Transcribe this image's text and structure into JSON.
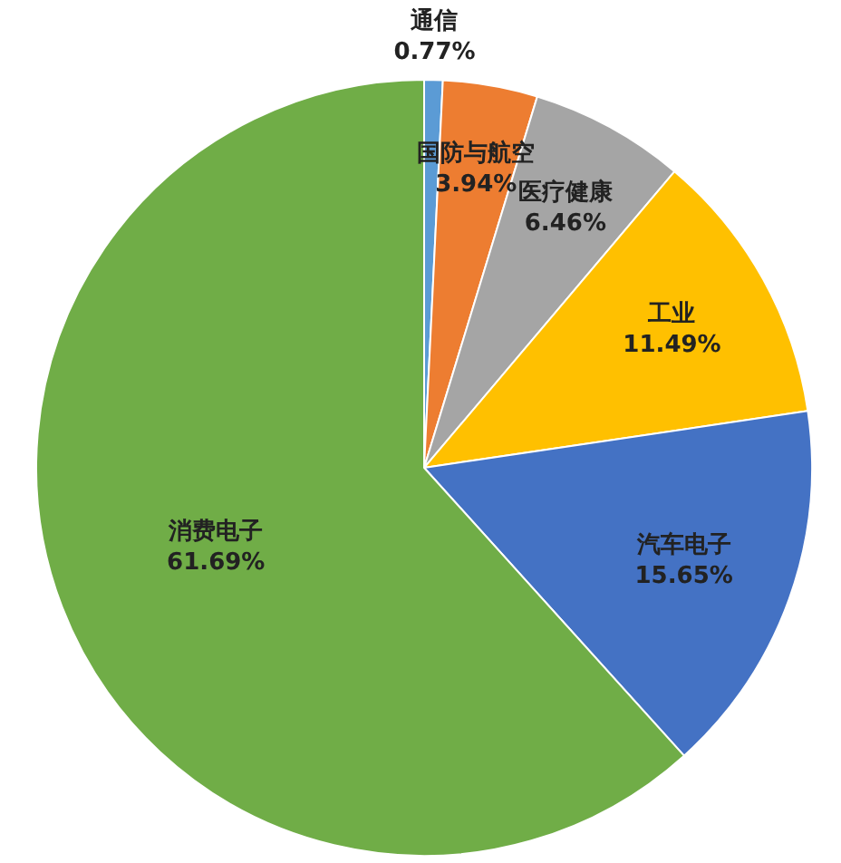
{
  "chart_data": {
    "type": "pie",
    "categories": [
      "通信",
      "国防与航空",
      "医疗健康",
      "工业",
      "汽车电子",
      "消费电子"
    ],
    "values": [
      0.77,
      3.94,
      6.46,
      11.49,
      15.65,
      61.69
    ],
    "value_labels": [
      "0.77%",
      "3.94%",
      "6.46%",
      "11.49%",
      "15.65%",
      "61.69%"
    ],
    "colors": [
      "#5b9bd5",
      "#ed7d31",
      "#a5a5a5",
      "#ffc000",
      "#4472c4",
      "#70ad47"
    ],
    "legend": false
  }
}
